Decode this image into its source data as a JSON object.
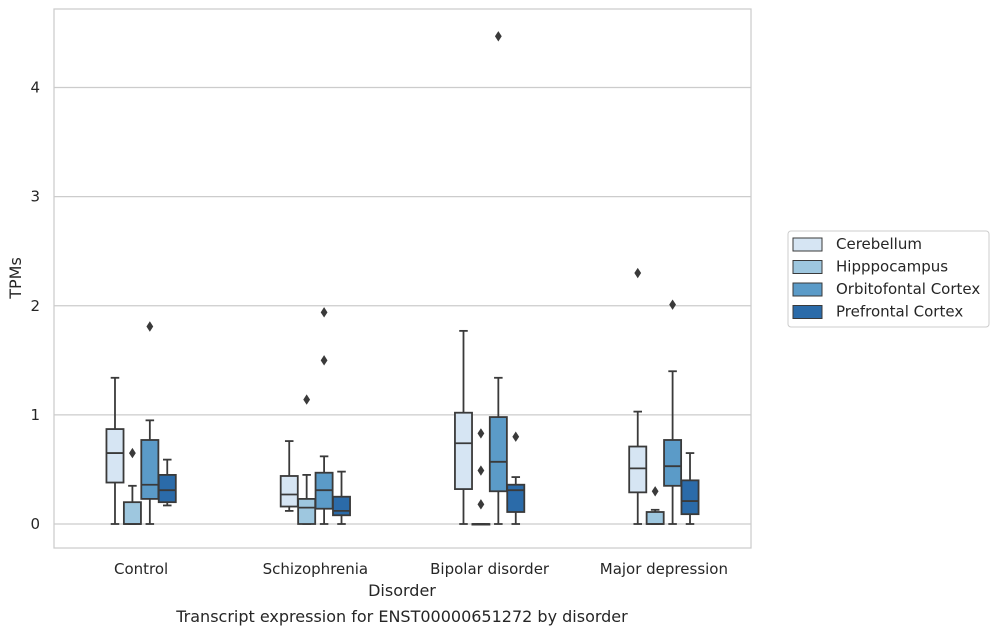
{
  "chart_data": {
    "type": "box",
    "xlabel": "Disorder",
    "ylabel": "TPMs",
    "caption": "Transcript expression for ENST00000651272 by disorder",
    "ylim": [
      -0.22,
      4.72
    ],
    "yticks": [
      0,
      1,
      2,
      3,
      4
    ],
    "grid": "horizontal",
    "legend_position": "right",
    "categories": [
      "Control",
      "Schizophrenia",
      "Bipolar disorder",
      "Major depression"
    ],
    "series": [
      {
        "name": "Cerebellum",
        "color": "#d6e5f3",
        "boxes": [
          {
            "whisker_low": 0.0,
            "q1": 0.38,
            "median": 0.65,
            "q3": 0.87,
            "whisker_high": 1.34,
            "outliers": []
          },
          {
            "whisker_low": 0.12,
            "q1": 0.16,
            "median": 0.27,
            "q3": 0.44,
            "whisker_high": 0.76,
            "outliers": []
          },
          {
            "whisker_low": 0.0,
            "q1": 0.32,
            "median": 0.74,
            "q3": 1.02,
            "whisker_high": 1.77,
            "outliers": []
          },
          {
            "whisker_low": 0.0,
            "q1": 0.29,
            "median": 0.51,
            "q3": 0.71,
            "whisker_high": 1.03,
            "outliers": [
              2.3
            ]
          }
        ]
      },
      {
        "name": "Hipppocampus",
        "color": "#9ec7df",
        "boxes": [
          {
            "whisker_low": 0.0,
            "q1": 0.0,
            "median": 0.0,
            "q3": 0.2,
            "whisker_high": 0.35,
            "outliers": [
              0.65
            ]
          },
          {
            "whisker_low": 0.0,
            "q1": 0.0,
            "median": 0.15,
            "q3": 0.23,
            "whisker_high": 0.45,
            "outliers": [
              1.14
            ]
          },
          {
            "whisker_low": 0.0,
            "q1": 0.0,
            "median": 0.0,
            "q3": 0.0,
            "whisker_high": 0.0,
            "outliers": [
              0.18,
              0.49,
              0.83
            ]
          },
          {
            "whisker_low": 0.0,
            "q1": 0.0,
            "median": 0.0,
            "q3": 0.11,
            "whisker_high": 0.13,
            "outliers": [
              0.3
            ]
          }
        ]
      },
      {
        "name": "Orbitofontal Cortex",
        "color": "#5b9bc8",
        "boxes": [
          {
            "whisker_low": 0.0,
            "q1": 0.23,
            "median": 0.36,
            "q3": 0.77,
            "whisker_high": 0.95,
            "outliers": [
              1.81
            ]
          },
          {
            "whisker_low": 0.0,
            "q1": 0.14,
            "median": 0.31,
            "q3": 0.47,
            "whisker_high": 0.62,
            "outliers": [
              1.5,
              1.94
            ]
          },
          {
            "whisker_low": 0.0,
            "q1": 0.3,
            "median": 0.57,
            "q3": 0.98,
            "whisker_high": 1.34,
            "outliers": [
              4.47
            ]
          },
          {
            "whisker_low": 0.0,
            "q1": 0.35,
            "median": 0.53,
            "q3": 0.77,
            "whisker_high": 1.4,
            "outliers": [
              2.01
            ]
          }
        ]
      },
      {
        "name": "Prefrontal Cortex",
        "color": "#2b6ba9",
        "boxes": [
          {
            "whisker_low": 0.17,
            "q1": 0.2,
            "median": 0.31,
            "q3": 0.45,
            "whisker_high": 0.59,
            "outliers": []
          },
          {
            "whisker_low": 0.0,
            "q1": 0.08,
            "median": 0.12,
            "q3": 0.25,
            "whisker_high": 0.48,
            "outliers": []
          },
          {
            "whisker_low": 0.0,
            "q1": 0.11,
            "median": 0.31,
            "q3": 0.36,
            "whisker_high": 0.43,
            "outliers": [
              0.8
            ]
          },
          {
            "whisker_low": 0.0,
            "q1": 0.09,
            "median": 0.21,
            "q3": 0.4,
            "whisker_high": 0.65,
            "outliers": []
          }
        ]
      }
    ]
  }
}
